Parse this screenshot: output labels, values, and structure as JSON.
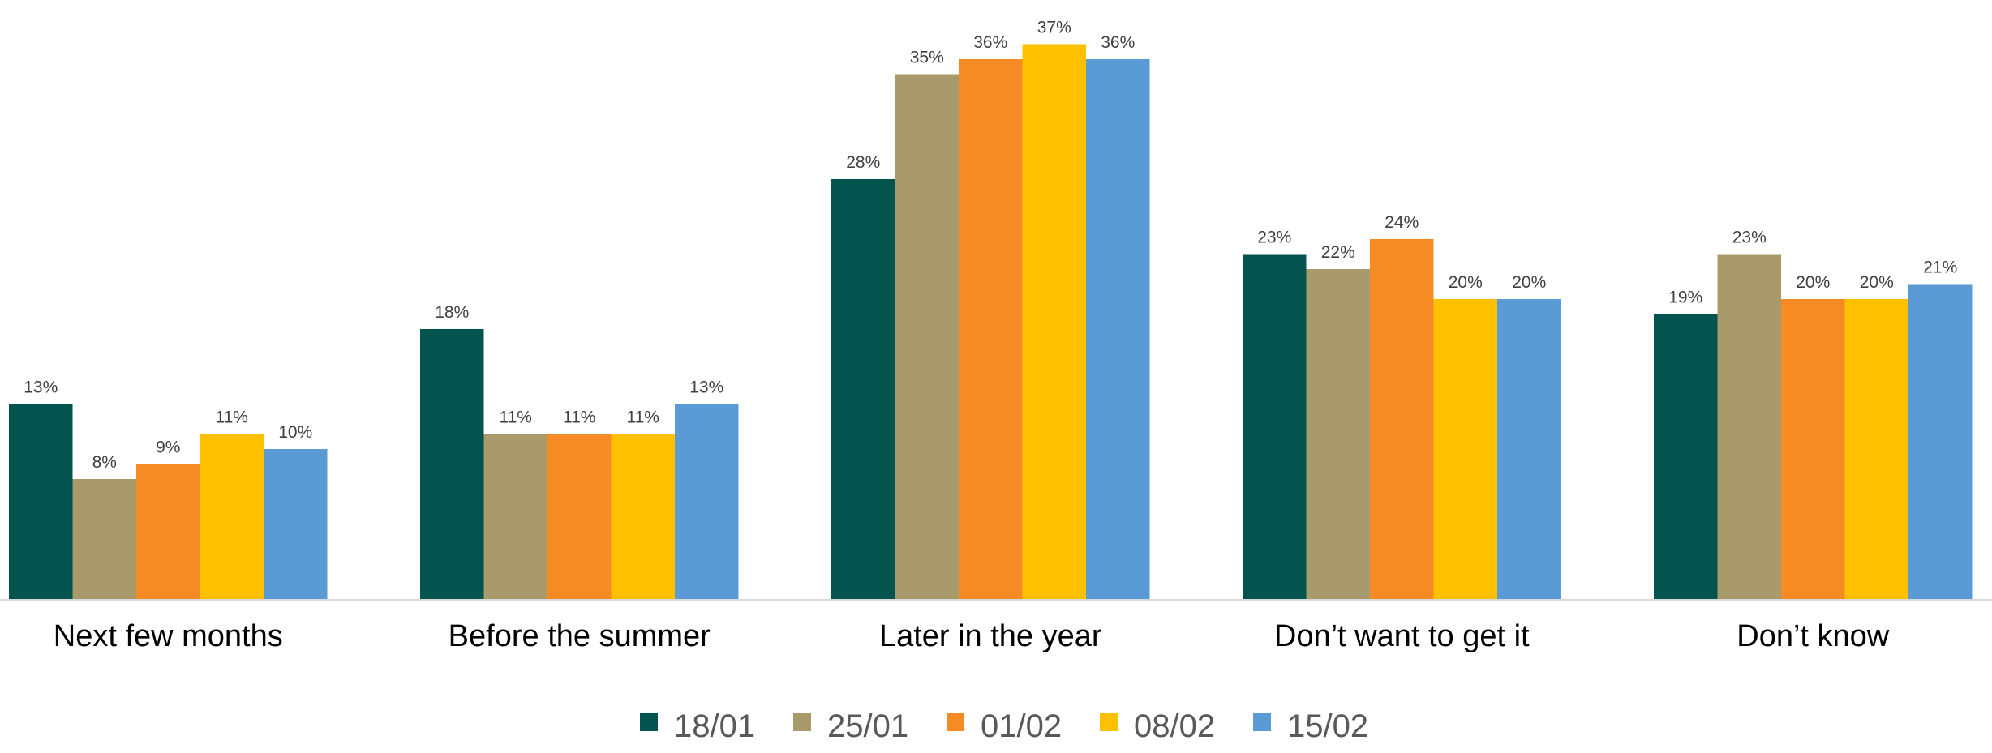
{
  "chart_data": {
    "type": "bar",
    "categories": [
      "Next few months",
      "Before the summer",
      "Later in the year",
      "Don’t want to get it",
      "Don’t know"
    ],
    "series": [
      {
        "name": "18/01",
        "color": "#03534E",
        "values": [
          13,
          18,
          28,
          23,
          19
        ]
      },
      {
        "name": "25/01",
        "color": "#A89A6B",
        "values": [
          8,
          11,
          35,
          22,
          23
        ]
      },
      {
        "name": "01/02",
        "color": "#F68B26",
        "values": [
          9,
          11,
          36,
          24,
          20
        ]
      },
      {
        "name": "08/02",
        "color": "#FFC000",
        "values": [
          11,
          11,
          37,
          20,
          20
        ]
      },
      {
        "name": "15/02",
        "color": "#5B9BD5",
        "values": [
          10,
          13,
          36,
          20,
          21
        ]
      }
    ],
    "value_suffix": "%",
    "ylim": [
      0,
      38
    ],
    "grid": false,
    "legend_position": "bottom"
  }
}
